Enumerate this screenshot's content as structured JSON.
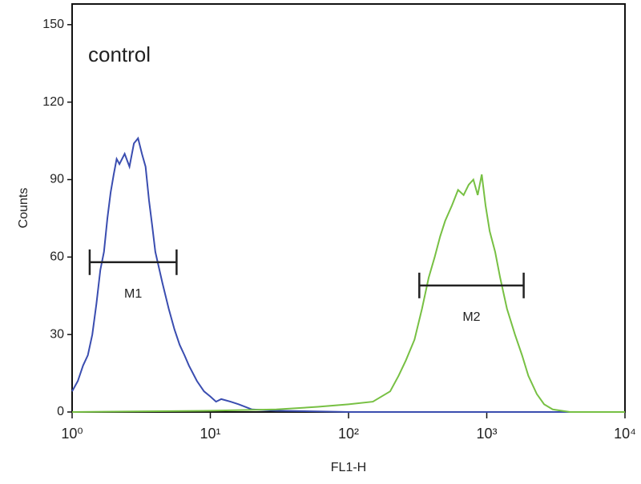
{
  "chart_data": {
    "type": "line",
    "annotation": "control",
    "xlabel": "FL1-H",
    "ylabel": "Counts",
    "xscale": "log",
    "xlim": [
      1,
      10000
    ],
    "xticks": [
      {
        "value": 1,
        "label": "10⁰"
      },
      {
        "value": 10,
        "label": "10¹"
      },
      {
        "value": 100,
        "label": "10²"
      },
      {
        "value": 1000,
        "label": "10³"
      },
      {
        "value": 10000,
        "label": "10⁴"
      }
    ],
    "ylim": [
      0,
      158
    ],
    "yticks": [
      0,
      30,
      60,
      90,
      120,
      150
    ],
    "series": [
      {
        "color": "#3a4db0",
        "x": [
          1,
          1.1,
          1.2,
          1.3,
          1.4,
          1.5,
          1.6,
          1.7,
          1.8,
          1.9,
          2.0,
          2.1,
          2.2,
          2.4,
          2.6,
          2.8,
          3.0,
          3.2,
          3.4,
          3.6,
          3.8,
          4.0,
          4.5,
          5,
          5.5,
          6,
          6.5,
          7,
          8,
          9,
          10,
          11,
          12,
          14,
          16,
          20,
          30,
          100,
          10000
        ],
        "values": [
          8,
          12,
          18,
          22,
          30,
          42,
          55,
          62,
          75,
          85,
          92,
          98,
          96,
          100,
          95,
          104,
          106,
          100,
          95,
          82,
          72,
          62,
          50,
          40,
          32,
          26,
          22,
          18,
          12,
          8,
          6,
          4,
          5,
          4,
          3,
          1,
          0.5,
          0,
          0
        ]
      },
      {
        "color": "#77c043",
        "x": [
          1,
          10,
          30,
          60,
          100,
          150,
          200,
          230,
          260,
          300,
          340,
          380,
          420,
          460,
          500,
          560,
          620,
          680,
          740,
          800,
          860,
          920,
          980,
          1050,
          1150,
          1250,
          1400,
          1600,
          1800,
          2000,
          2300,
          2600,
          3000,
          4000,
          10000
        ],
        "values": [
          0,
          0.5,
          1,
          2,
          3,
          4,
          8,
          14,
          20,
          28,
          40,
          52,
          60,
          68,
          74,
          80,
          86,
          84,
          88,
          90,
          84,
          92,
          80,
          70,
          62,
          52,
          40,
          30,
          22,
          14,
          7,
          3,
          1,
          0,
          0
        ]
      }
    ],
    "markers": [
      {
        "label": "M1",
        "x": [
          1.34,
          5.7
        ],
        "y": 58
      },
      {
        "label": "M2",
        "x": [
          325,
          1850
        ],
        "y": 49
      }
    ],
    "marker_color": "#222222"
  }
}
